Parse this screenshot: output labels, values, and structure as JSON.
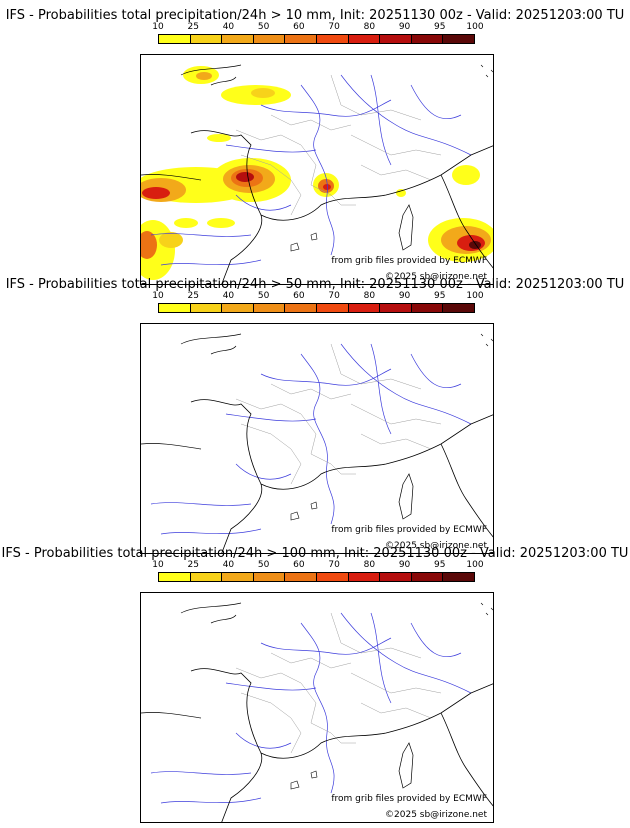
{
  "colorbar": {
    "ticks": [
      "10",
      "25",
      "40",
      "50",
      "60",
      "70",
      "80",
      "90",
      "95",
      "100"
    ],
    "colors": [
      "#ffff1a",
      "#f7d21a",
      "#f2a91a",
      "#ef8f18",
      "#ec7314",
      "#f04a10",
      "#d81e10",
      "#b50e0e",
      "#880808",
      "#5a0808"
    ]
  },
  "panels": [
    {
      "title": "IFS - Probabilities total precipitation/24h > 10 mm, Init: 20251130 00z - Valid: 20251203:00 TU",
      "threshold_mm": 10,
      "credit_source": "from grib files provided by ECMWF",
      "credit_copyright": "©2025 sb@irizone.net"
    },
    {
      "title": "IFS - Probabilities total precipitation/24h > 50 mm, Init: 20251130 00z - Valid: 20251203:00 TU",
      "threshold_mm": 50,
      "credit_source": "from grib files provided by ECMWF",
      "credit_copyright": "©2025 sb@irizone.net"
    },
    {
      "title": "IFS - Probabilities total precipitation/24h > 100 mm, Init: 20251130 00z - Valid: 20251203:00 TU",
      "threshold_mm": 100,
      "credit_source": "from grib files provided by ECMWF",
      "credit_copyright": "©2025 sb@irizone.net"
    }
  ]
}
